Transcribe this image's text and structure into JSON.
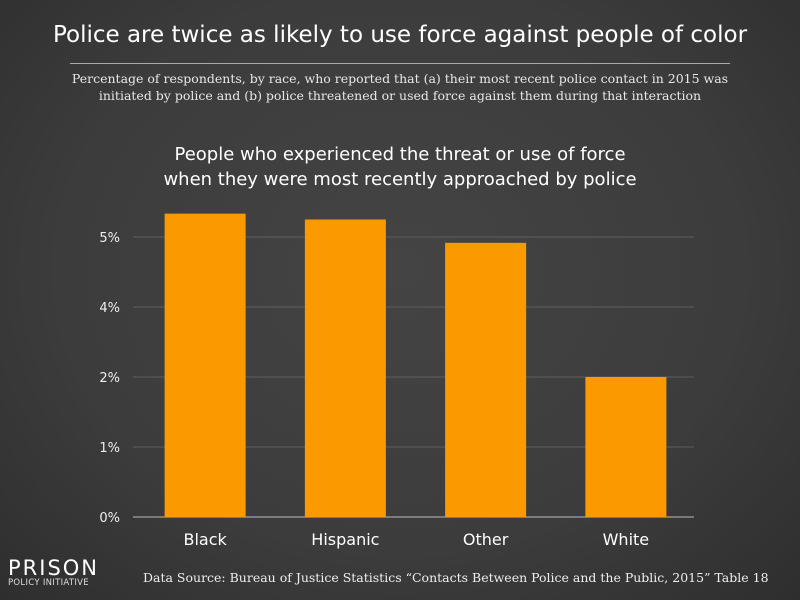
{
  "header": {
    "title": "Police are twice as likely to use force against people of color",
    "subtitle_line1": "Percentage of respondents, by race, who reported that (a) their most recent police contact in 2015 was",
    "subtitle_line2": "initiated by police and (b) police threatened or used force against them during that interaction"
  },
  "chart_data": {
    "type": "bar",
    "title_line1": "People who experienced the threat or use of force",
    "title_line2": "when they were most recently approached by police",
    "categories": [
      "Black",
      "Hispanic",
      "Other",
      "White"
    ],
    "values": [
      5.2,
      5.1,
      4.7,
      2.4
    ],
    "unit": "%",
    "ylim": [
      0,
      5.4
    ],
    "yticks": [
      0,
      1.2,
      2.4,
      3.6,
      4.8
    ],
    "ytick_labels": [
      "0%",
      "1%",
      "2%",
      "4%",
      "5%"
    ],
    "grid": true,
    "bar_color": "#fa9a00"
  },
  "footer": {
    "logo_line1": "PRISON",
    "logo_line2": "POLICY INITIATIVE",
    "source": "Data Source: Bureau of Justice Statistics “Contacts Between Police and the Public, 2015” Table 18"
  }
}
